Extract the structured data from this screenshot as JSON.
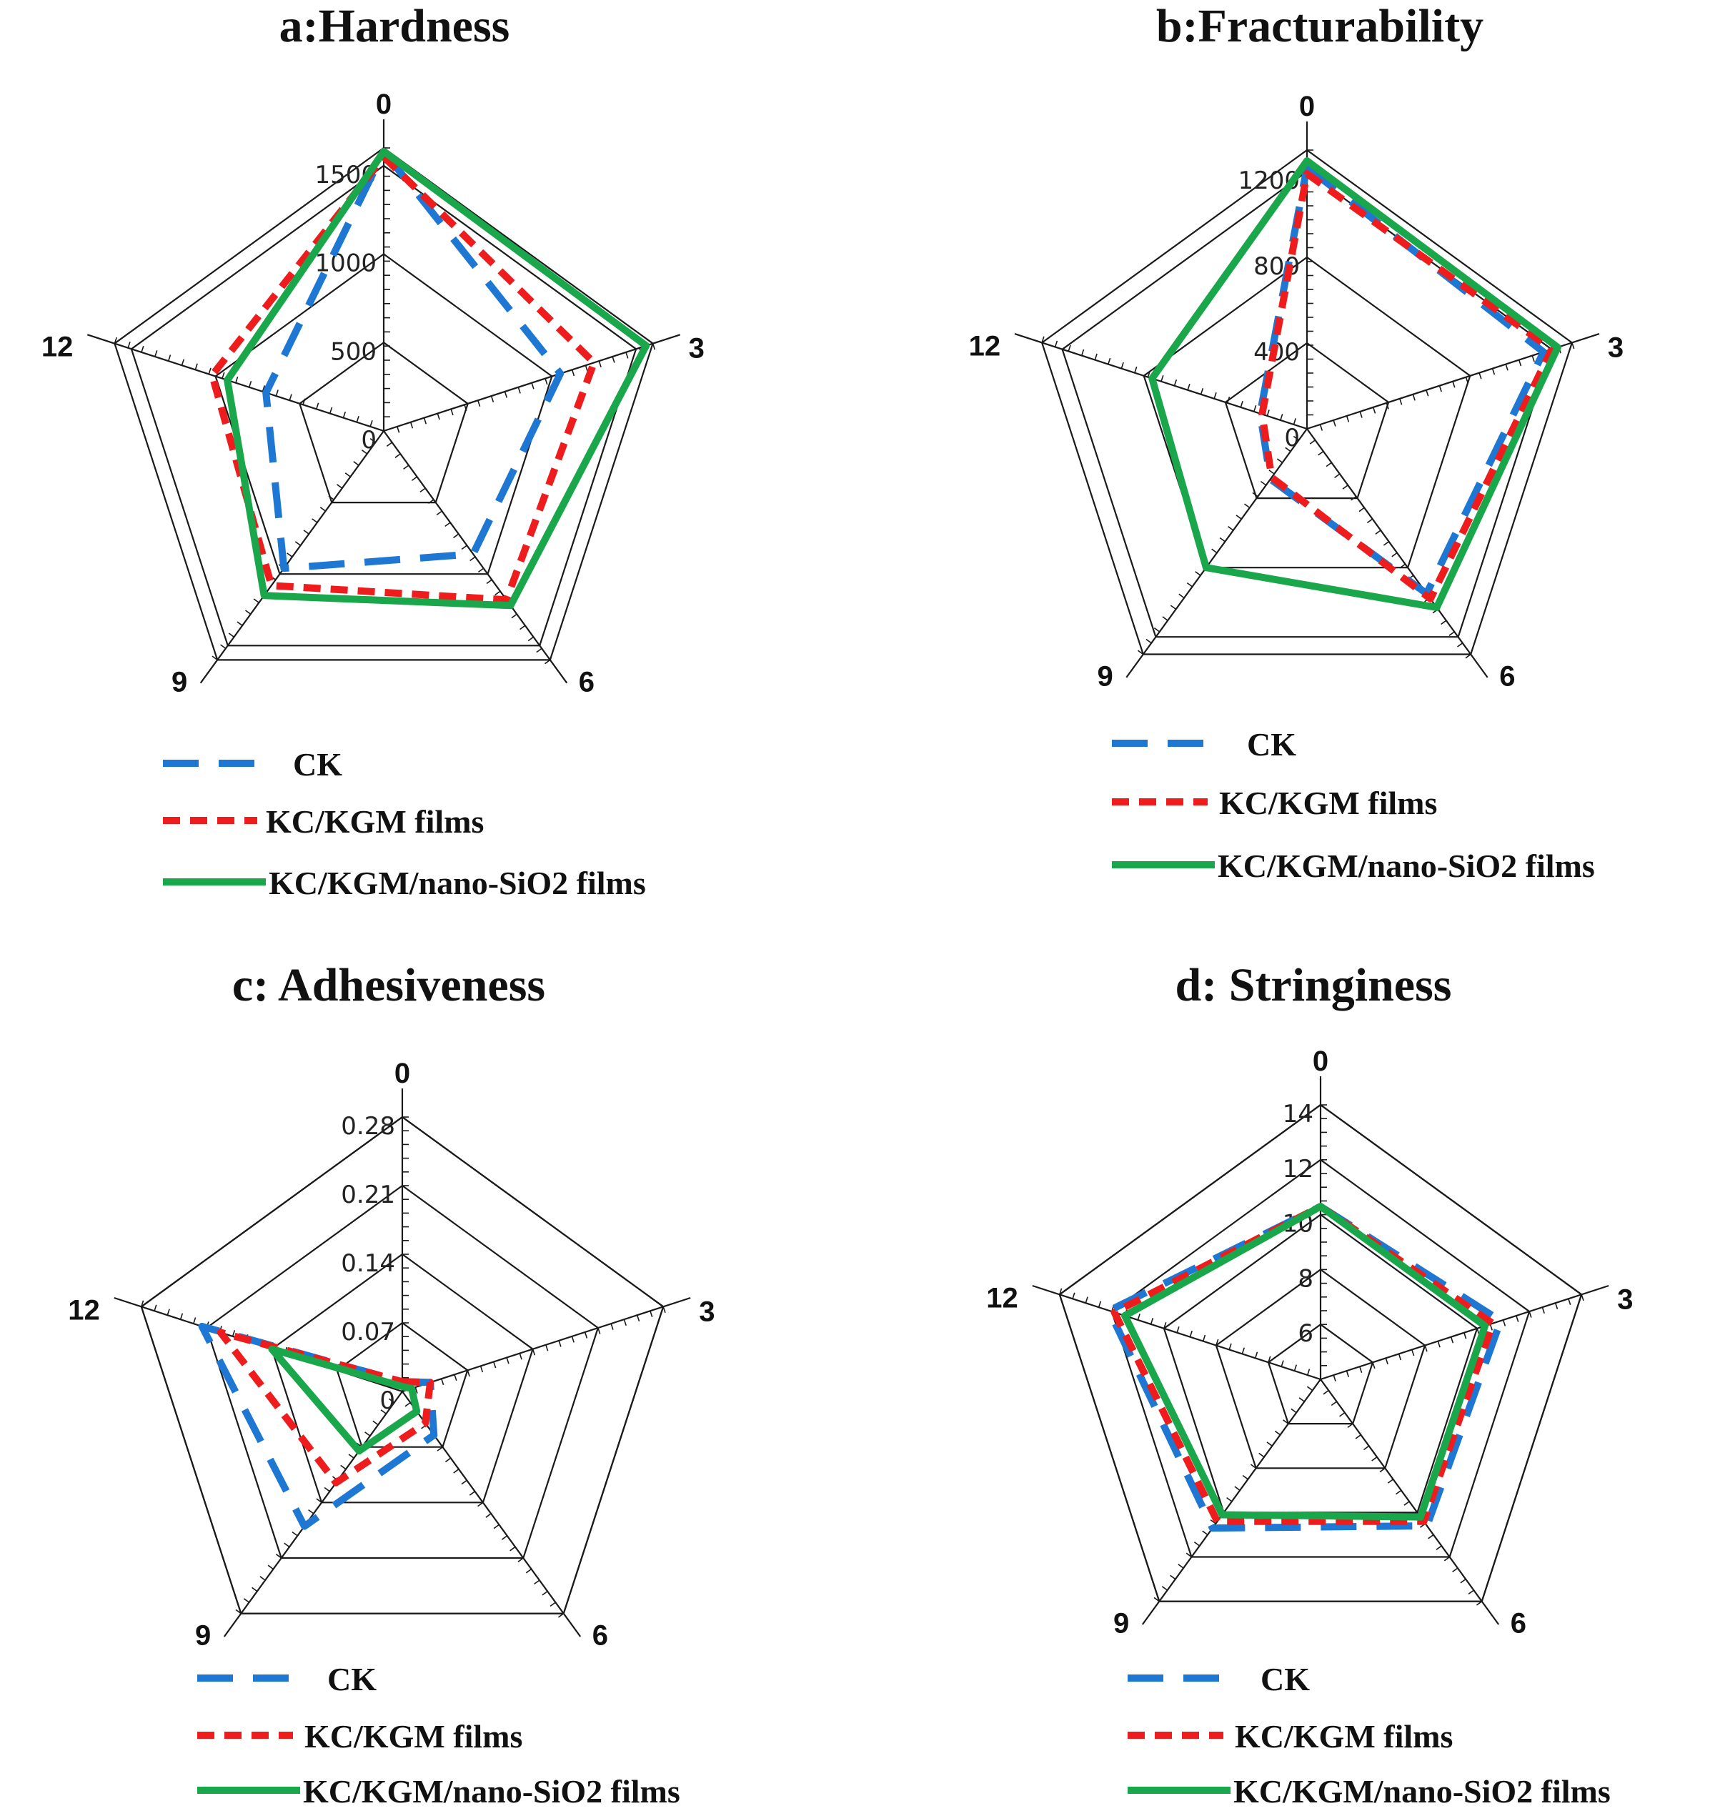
{
  "figure": {
    "colors": {
      "CK": "#1f77d4",
      "KC/KGM films": "#ee1c1c",
      "KC/KGM/nano-SiO2 films": "#1aa64a"
    },
    "series_styles": {
      "CK": "long-dash",
      "KC/KGM films": "short-dash",
      "KC/KGM/nano-SiO2 films": "solid"
    }
  },
  "chart_data": [
    {
      "id": "a",
      "type": "radar",
      "title": "a:Hardness",
      "axes": [
        "0",
        "3",
        "6",
        "9",
        "12"
      ],
      "ticks": [
        "0",
        "500",
        "1000",
        "1500"
      ],
      "rmax": 1600,
      "series": [
        {
          "name": "CK",
          "legend": "CK",
          "values": [
            1580,
            1050,
            860,
            960,
            700
          ]
        },
        {
          "name": "KC/KGM films",
          "legend": "KC/KGM films",
          "values": [
            1550,
            1250,
            1180,
            1080,
            1020
          ]
        },
        {
          "name": "KC/KGM/nano-SiO2 films",
          "legend": "KC/KGM/nano-SiO2 films",
          "values": [
            1580,
            1560,
            1220,
            1150,
            930
          ]
        }
      ]
    },
    {
      "id": "b",
      "type": "radar",
      "title": "b:Fracturability",
      "axes": [
        "0",
        "3",
        "6",
        "9",
        "12"
      ],
      "ticks": [
        "0",
        "400",
        "800",
        "1200"
      ],
      "rmax": 1300,
      "series": [
        {
          "name": "CK",
          "legend": "CK",
          "values": [
            1220,
            1160,
            950,
            290,
            230
          ]
        },
        {
          "name": "KC/KGM films",
          "legend": "KC/KGM films",
          "values": [
            1190,
            1200,
            980,
            280,
            220
          ]
        },
        {
          "name": "KC/KGM/nano-SiO2 films",
          "legend": "KC/KGM/nano-SiO2 films",
          "values": [
            1250,
            1230,
            1030,
            800,
            760
          ]
        }
      ]
    },
    {
      "id": "c",
      "type": "radar",
      "title": "c: Adhesiveness",
      "axes": [
        "0",
        "3",
        "6",
        "9",
        "12"
      ],
      "ticks": [
        "0",
        "0.07",
        "0.14",
        "0.21",
        "0.28"
      ],
      "rmax": 0.28,
      "series": [
        {
          "name": "CK",
          "legend": "CK",
          "values": [
            0.01,
            0.03,
            0.055,
            0.17,
            0.215
          ]
        },
        {
          "name": "KC/KGM films",
          "legend": "KC/KGM films",
          "values": [
            0.01,
            0.03,
            0.04,
            0.115,
            0.195
          ]
        },
        {
          "name": "KC/KGM/nano-SiO2 films",
          "legend": "KC/KGM/nano-SiO2 films",
          "values": [
            0.005,
            0.01,
            0.025,
            0.075,
            0.14
          ]
        }
      ]
    },
    {
      "id": "d",
      "type": "radar",
      "title": "d: Stringiness",
      "axes": [
        "0",
        "3",
        "6",
        "9",
        "12"
      ],
      "ticks": [
        "6",
        "8",
        "10",
        "12",
        "14"
      ],
      "rmin": 4,
      "rmax": 14,
      "series": [
        {
          "name": "CK",
          "legend": "CK",
          "values": [
            10.3,
            10.9,
            10.6,
            10.7,
            12.1
          ]
        },
        {
          "name": "KC/KGM films",
          "legend": "KC/KGM films",
          "values": [
            10.3,
            10.6,
            10.4,
            10.4,
            11.9
          ]
        },
        {
          "name": "KC/KGM/nano-SiO2 films",
          "legend": "KC/KGM/nano-SiO2 films",
          "values": [
            10.3,
            10.3,
            10.2,
            10.1,
            11.5
          ]
        }
      ]
    }
  ]
}
